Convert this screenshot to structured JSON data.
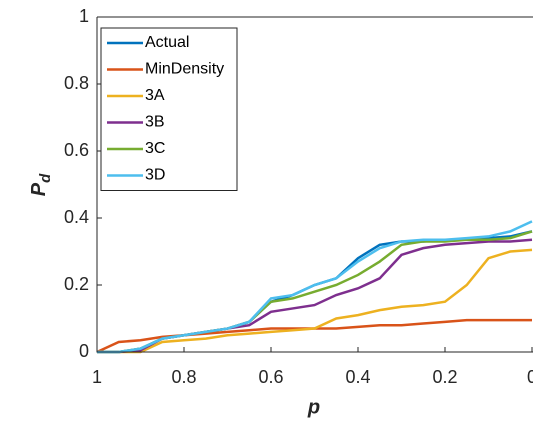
{
  "chart_data": {
    "type": "line",
    "xlabel": "p",
    "ylabel": "P",
    "ylabel_sub": "d",
    "x": [
      1,
      0.95,
      0.9,
      0.85,
      0.8,
      0.75,
      0.7,
      0.65,
      0.6,
      0.55,
      0.5,
      0.45,
      0.4,
      0.35,
      0.3,
      0.25,
      0.2,
      0.15,
      0.1,
      0.05,
      0
    ],
    "series": [
      {
        "name": "Actual",
        "color": "#0072bd",
        "values": [
          0,
          0,
          0.01,
          0.04,
          0.05,
          0.06,
          0.07,
          0.09,
          0.15,
          0.17,
          0.2,
          0.22,
          0.28,
          0.32,
          0.33,
          0.33,
          0.335,
          0.335,
          0.34,
          0.345,
          0.36
        ]
      },
      {
        "name": "MinDensity",
        "color": "#d95319",
        "values": [
          0,
          0.03,
          0.035,
          0.045,
          0.05,
          0.055,
          0.06,
          0.065,
          0.07,
          0.07,
          0.07,
          0.07,
          0.075,
          0.08,
          0.08,
          0.085,
          0.09,
          0.095,
          0.095,
          0.095,
          0.095
        ]
      },
      {
        "name": "3A",
        "color": "#edb120",
        "values": [
          0,
          0,
          0,
          0.03,
          0.035,
          0.04,
          0.05,
          0.055,
          0.06,
          0.065,
          0.07,
          0.1,
          0.11,
          0.125,
          0.135,
          0.14,
          0.15,
          0.2,
          0.28,
          0.3,
          0.305
        ]
      },
      {
        "name": "3B",
        "color": "#7e2f8e",
        "values": [
          0,
          0,
          0.005,
          0.04,
          0.05,
          0.06,
          0.07,
          0.08,
          0.12,
          0.13,
          0.14,
          0.17,
          0.19,
          0.22,
          0.29,
          0.31,
          0.32,
          0.325,
          0.33,
          0.33,
          0.335
        ]
      },
      {
        "name": "3C",
        "color": "#77ac30",
        "values": [
          0,
          0,
          0.01,
          0.04,
          0.05,
          0.06,
          0.07,
          0.09,
          0.15,
          0.16,
          0.18,
          0.2,
          0.23,
          0.27,
          0.32,
          0.33,
          0.33,
          0.335,
          0.335,
          0.34,
          0.36
        ]
      },
      {
        "name": "3D",
        "color": "#4dbeee",
        "values": [
          0,
          0,
          0.01,
          0.04,
          0.05,
          0.06,
          0.07,
          0.09,
          0.16,
          0.17,
          0.2,
          0.22,
          0.27,
          0.31,
          0.33,
          0.335,
          0.335,
          0.34,
          0.345,
          0.36,
          0.39
        ]
      }
    ],
    "xlim": [
      1,
      0
    ],
    "ylim": [
      0,
      1
    ],
    "xticks": [
      1,
      0.8,
      0.6,
      0.4,
      0.2,
      0
    ],
    "yticks": [
      0,
      0.2,
      0.4,
      0.6,
      0.8,
      1
    ],
    "legend": "upper-left"
  }
}
